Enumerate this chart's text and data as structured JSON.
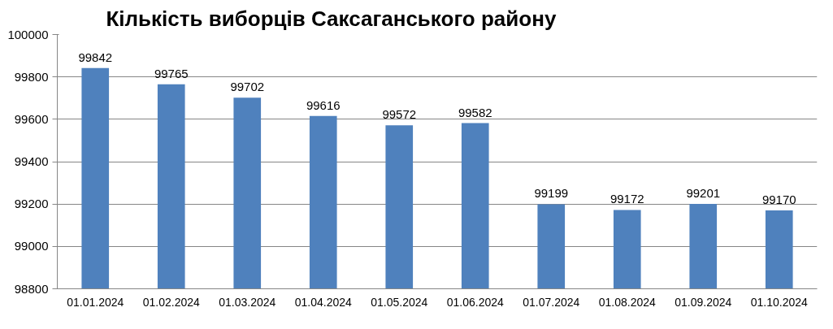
{
  "chart_data": {
    "type": "bar",
    "title": "Кількість виборців Саксаганського району",
    "categories": [
      "01.01.2024",
      "01.02.2024",
      "01.03.2024",
      "01.04.2024",
      "01.05.2024",
      "01.06.2024",
      "01.07.2024",
      "01.08.2024",
      "01.09.2024",
      "01.10.2024"
    ],
    "values": [
      99842,
      99765,
      99702,
      99616,
      99572,
      99582,
      99199,
      99172,
      99201,
      99170
    ],
    "color": "#4f81bd",
    "ylim": [
      98800,
      100000
    ],
    "yticks": [
      98800,
      99000,
      99200,
      99400,
      99600,
      99800,
      100000
    ],
    "grid": "y",
    "data_labels": true
  }
}
